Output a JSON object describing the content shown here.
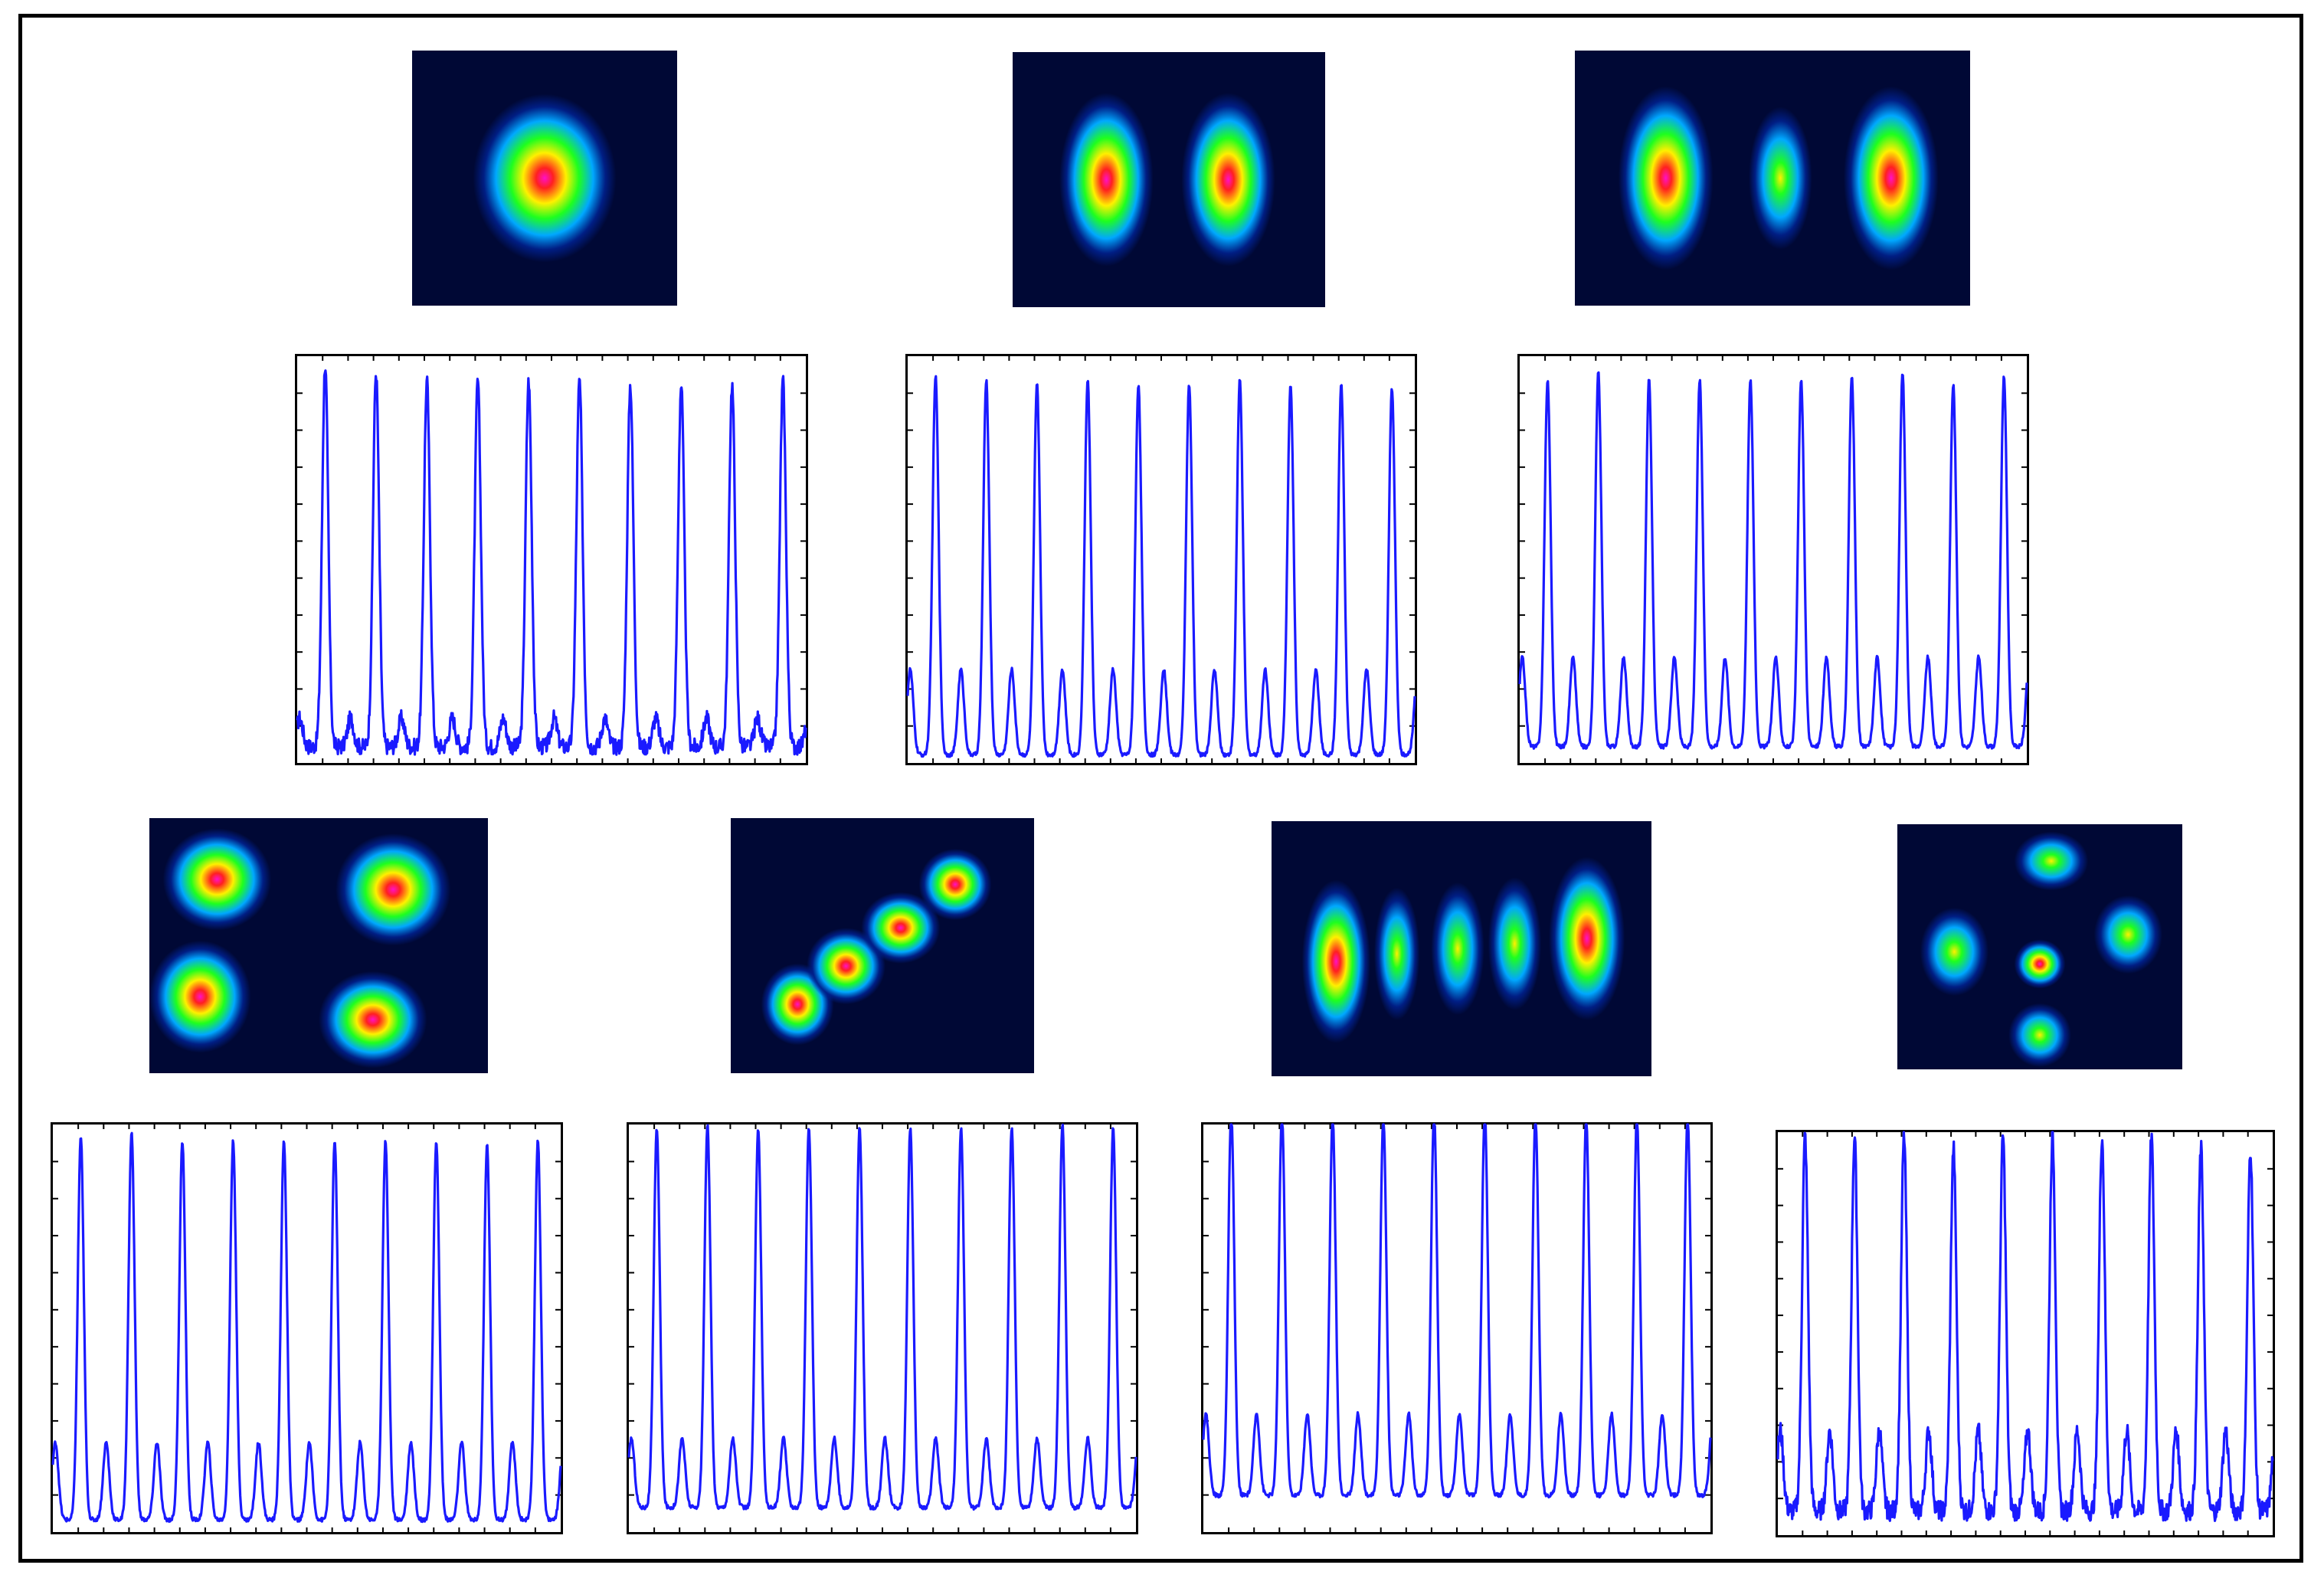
{
  "beam_profiles": [
    {
      "mode": "single-lobe",
      "colors": [
        "#000018",
        "#00208c",
        "#00a8ff",
        "#1eff1e",
        "#fff000",
        "#ff2020",
        "#ff10c8"
      ]
    },
    {
      "mode": "two-lobe",
      "colors": [
        "#000018",
        "#00208c",
        "#00a8ff",
        "#1eff1e",
        "#fff000",
        "#ff2020",
        "#ff10c8"
      ]
    },
    {
      "mode": "three-lobe",
      "colors": [
        "#000018",
        "#00208c",
        "#00a8ff",
        "#1eff1e",
        "#fff000",
        "#ff2020",
        "#ff10c8"
      ]
    },
    {
      "mode": "four-lobe-grid",
      "colors": [
        "#000018",
        "#00208c",
        "#00a8ff",
        "#1eff1e",
        "#fff000",
        "#ff2020",
        "#ff10c8"
      ]
    },
    {
      "mode": "diagonal-chain",
      "colors": [
        "#000018",
        "#00208c",
        "#00a8ff",
        "#1eff1e",
        "#fff000",
        "#ff2020",
        "#ff10c8"
      ]
    },
    {
      "mode": "five-lobe-row",
      "colors": [
        "#000018",
        "#00208c",
        "#00a8ff",
        "#1eff1e",
        "#fff000",
        "#ff2020",
        "#ff10c8"
      ]
    },
    {
      "mode": "cross-pattern",
      "colors": [
        "#000018",
        "#00208c",
        "#00a8ff",
        "#1eff1e",
        "#fff000",
        "#ff2020",
        "#ff10c8"
      ]
    }
  ],
  "chart_data": [
    {
      "type": "line",
      "pulse_count": 10,
      "line_color": "#1a1aff",
      "xlim": [
        0,
        100
      ],
      "ylim": [
        0,
        1
      ],
      "peak_heights": [
        0.94,
        0.92,
        0.9,
        0.9,
        0.9,
        0.9,
        0.89,
        0.89,
        0.89,
        0.9
      ],
      "secondary_peak": 0.07,
      "baseline": 0.04,
      "noise": 0.04
    },
    {
      "type": "line",
      "pulse_count": 10,
      "line_color": "#1a1aff",
      "xlim": [
        0,
        100
      ],
      "ylim": [
        0,
        1
      ],
      "peak_heights": [
        0.93,
        0.92,
        0.91,
        0.92,
        0.91,
        0.91,
        0.92,
        0.91,
        0.91,
        0.9
      ],
      "secondary_peak": 0.21,
      "baseline": 0.02,
      "noise": 0.01
    },
    {
      "type": "line",
      "pulse_count": 10,
      "line_color": "#1a1aff",
      "xlim": [
        0,
        100
      ],
      "ylim": [
        0,
        1
      ],
      "peak_heights": [
        0.9,
        0.92,
        0.9,
        0.9,
        0.9,
        0.9,
        0.91,
        0.92,
        0.89,
        0.91
      ],
      "secondary_peak": 0.22,
      "baseline": 0.04,
      "noise": 0.01
    },
    {
      "type": "line",
      "pulse_count": 10,
      "line_color": "#1a1aff",
      "xlim": [
        0,
        100
      ],
      "ylim": [
        0,
        1
      ],
      "peak_heights": [
        0.94,
        0.95,
        0.93,
        0.93,
        0.93,
        0.93,
        0.93,
        0.93,
        0.92,
        0.93
      ],
      "secondary_peak": 0.19,
      "baseline": 0.03,
      "noise": 0.01
    },
    {
      "type": "line",
      "pulse_count": 10,
      "line_color": "#1a1aff",
      "xlim": [
        0,
        100
      ],
      "ylim": [
        0,
        1
      ],
      "peak_heights": [
        0.93,
        0.94,
        0.93,
        0.93,
        0.93,
        0.93,
        0.93,
        0.93,
        0.94,
        0.93
      ],
      "secondary_peak": 0.17,
      "baseline": 0.06,
      "noise": 0.01
    },
    {
      "type": "line",
      "pulse_count": 10,
      "line_color": "#1a1aff",
      "xlim": [
        0,
        100
      ],
      "ylim": [
        0,
        1
      ],
      "peak_heights": [
        0.94,
        0.94,
        0.93,
        0.93,
        0.94,
        0.94,
        0.93,
        0.93,
        0.93,
        0.93
      ],
      "secondary_peak": 0.2,
      "baseline": 0.09,
      "noise": 0.01
    },
    {
      "type": "line",
      "pulse_count": 10,
      "line_color": "#1a1aff",
      "xlim": [
        0,
        100
      ],
      "ylim": [
        0,
        1
      ],
      "peak_heights": [
        0.93,
        0.93,
        0.93,
        0.9,
        0.93,
        0.93,
        0.93,
        0.93,
        0.9,
        0.9
      ],
      "secondary_peak": 0.2,
      "baseline": 0.06,
      "noise": 0.05
    }
  ]
}
